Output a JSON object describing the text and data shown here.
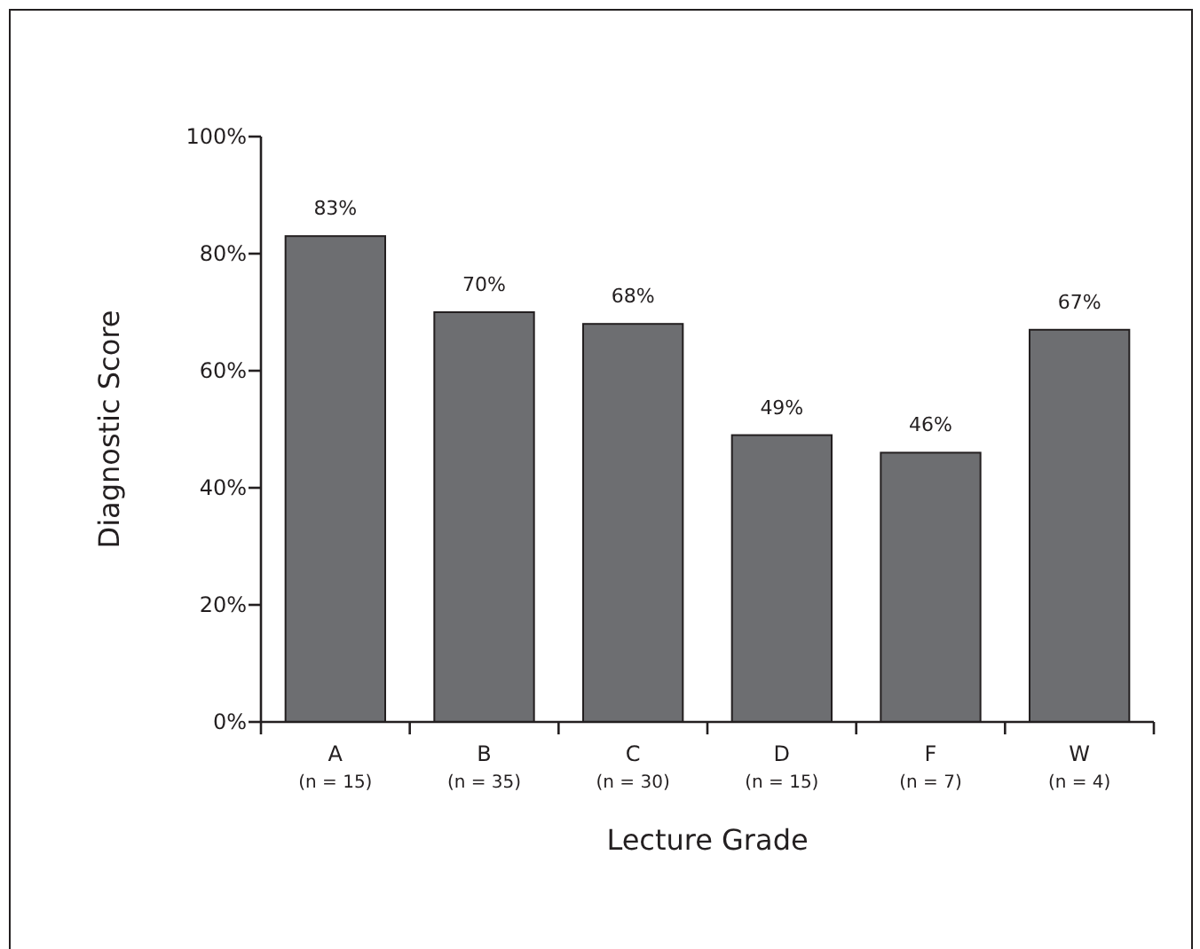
{
  "chart_data": {
    "type": "bar",
    "ylabel": "Diagnostic Score",
    "xlabel": "Lecture Grade",
    "categories": [
      "A\n(n = 15)",
      "B\n(n = 35)",
      "C\n(n = 30)",
      "D\n(n = 15)",
      "F\n(n = 7)",
      "W\n(n = 4)"
    ],
    "values": [
      83,
      70,
      68,
      49,
      46,
      67
    ],
    "value_labels": [
      "83%",
      "70%",
      "68%",
      "49%",
      "46%",
      "67%"
    ],
    "color": "#6d6e71",
    "ylim": [
      0,
      100
    ],
    "yticks": [
      {
        "value": 0,
        "label": "0%"
      },
      {
        "value": 20,
        "label": "20%"
      },
      {
        "value": 40,
        "label": "40%"
      },
      {
        "value": 60,
        "label": "60%"
      },
      {
        "value": 80,
        "label": "80%"
      },
      {
        "value": 100,
        "label": "100%"
      }
    ],
    "grid": false
  }
}
